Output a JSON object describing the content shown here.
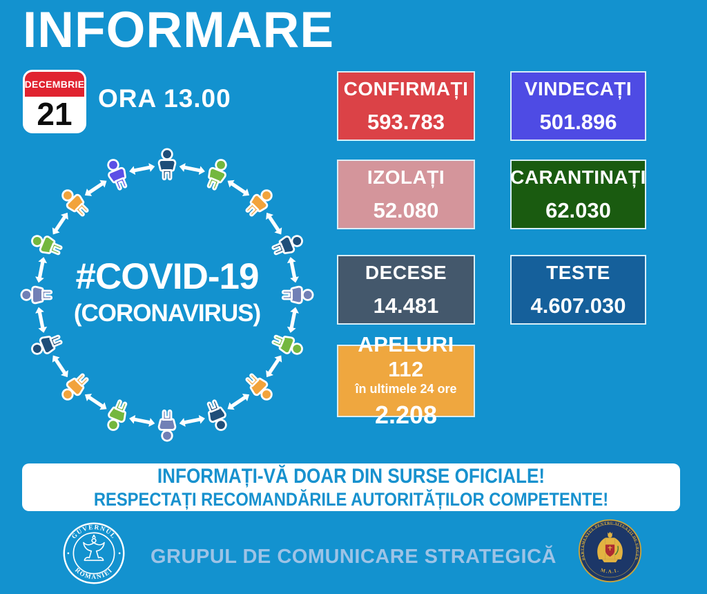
{
  "page": {
    "background": "#1392CF"
  },
  "header": {
    "title": "INFORMARE",
    "time": "ORA 13.00"
  },
  "calendar": {
    "month": "DECEMBRIE",
    "day": "21",
    "header_color": "#E02330"
  },
  "diagram": {
    "center_line1": "#COVID-19",
    "center_line2": "(CORONAVIRUS)",
    "arrow_color": "#FFFFFF",
    "people_colors": [
      "#1F4E79",
      "#74B73E",
      "#F2A33B",
      "#1F4E79",
      "#7180B6",
      "#74B73E",
      "#F2A33B",
      "#1F4E79",
      "#7180B6",
      "#74B73E",
      "#F2A33B",
      "#1F4E79",
      "#7180B6",
      "#74B73E",
      "#F2A33B",
      "#5B4FE6"
    ]
  },
  "stats": [
    {
      "label": "CONFIRMAȚI",
      "value": "593.783",
      "bg": "#DB4247"
    },
    {
      "label": "VINDECAȚI",
      "value": "501.896",
      "bg": "#4E4BE4"
    },
    {
      "label": "IZOLAȚI",
      "value": "52.080",
      "bg": "#D4959B"
    },
    {
      "label": "CARANTINAȚI",
      "value": "62.030",
      "bg": "#1A5B10"
    },
    {
      "label": "DECESE",
      "value": "14.481",
      "bg": "#44586C"
    },
    {
      "label": "TESTE",
      "value": "4.607.030",
      "bg": "#15609B"
    },
    {
      "label": "APELURI 112",
      "sublabel": "în ultimele 24 ore",
      "value": "2.208",
      "bg": "#EFA73F"
    }
  ],
  "banner": {
    "line1": "INFORMAȚI-VĂ DOAR DIN SURSE OFICIALE!",
    "line2": "RESPECTAȚI RECOMANDĂRILE AUTORITĂȚILOR COMPETENTE!",
    "text_color": "#1791CE"
  },
  "footer": {
    "gov_seal": {
      "top_text": "GUVERNUL",
      "bottom_text": "ROMÂNIEI"
    },
    "team_label": "GRUPUL DE COMUNICARE STRATEGICĂ",
    "dsu_seal": {
      "arc_text": "DEPARTAMENTUL PENTRU SITUAȚII DE URGENȚĂ",
      "bottom_text": "M.A.I."
    }
  }
}
